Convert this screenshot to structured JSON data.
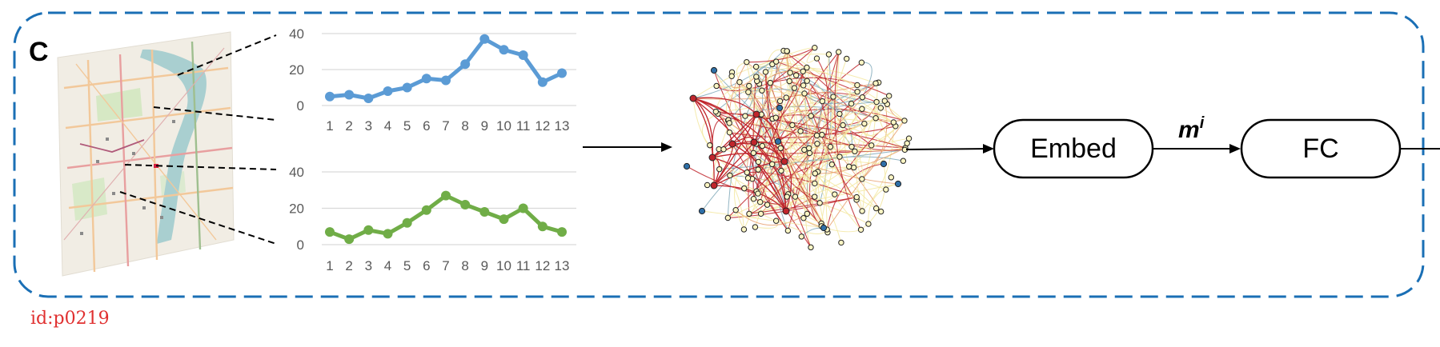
{
  "panel": {
    "label": "C",
    "border_color": "#1a6fb5"
  },
  "charts": [
    {
      "type": "line",
      "name": "upper-line-chart",
      "x": [
        1,
        2,
        3,
        4,
        5,
        6,
        7,
        8,
        9,
        10,
        11,
        12,
        13
      ],
      "values": [
        5,
        6,
        4,
        8,
        10,
        15,
        14,
        23,
        37,
        31,
        28,
        13,
        18
      ],
      "y_ticks": [
        0,
        20,
        40
      ],
      "ylim": [
        0,
        40
      ],
      "color": "#5b9bd5",
      "grid": true
    },
    {
      "type": "line",
      "name": "lower-line-chart",
      "x": [
        1,
        2,
        3,
        4,
        5,
        6,
        7,
        8,
        9,
        10,
        11,
        12,
        13
      ],
      "values": [
        7,
        3,
        8,
        6,
        12,
        19,
        27,
        22,
        18,
        14,
        20,
        10,
        7
      ],
      "y_ticks": [
        0,
        20,
        40
      ],
      "ylim": [
        0,
        40
      ],
      "color": "#70ad47",
      "grid": true
    }
  ],
  "boxes": {
    "embed": "Embed",
    "fc": "FC"
  },
  "arrow_label": {
    "base": "m",
    "sup": "i"
  },
  "footer_id": "id:p0219",
  "colors": {
    "network_red": "#c0262d",
    "network_blue": "#2e6fa7",
    "network_yellow": "#f3e7a0",
    "map_road": "#f2c89a",
    "map_water": "#a9cfd0"
  }
}
